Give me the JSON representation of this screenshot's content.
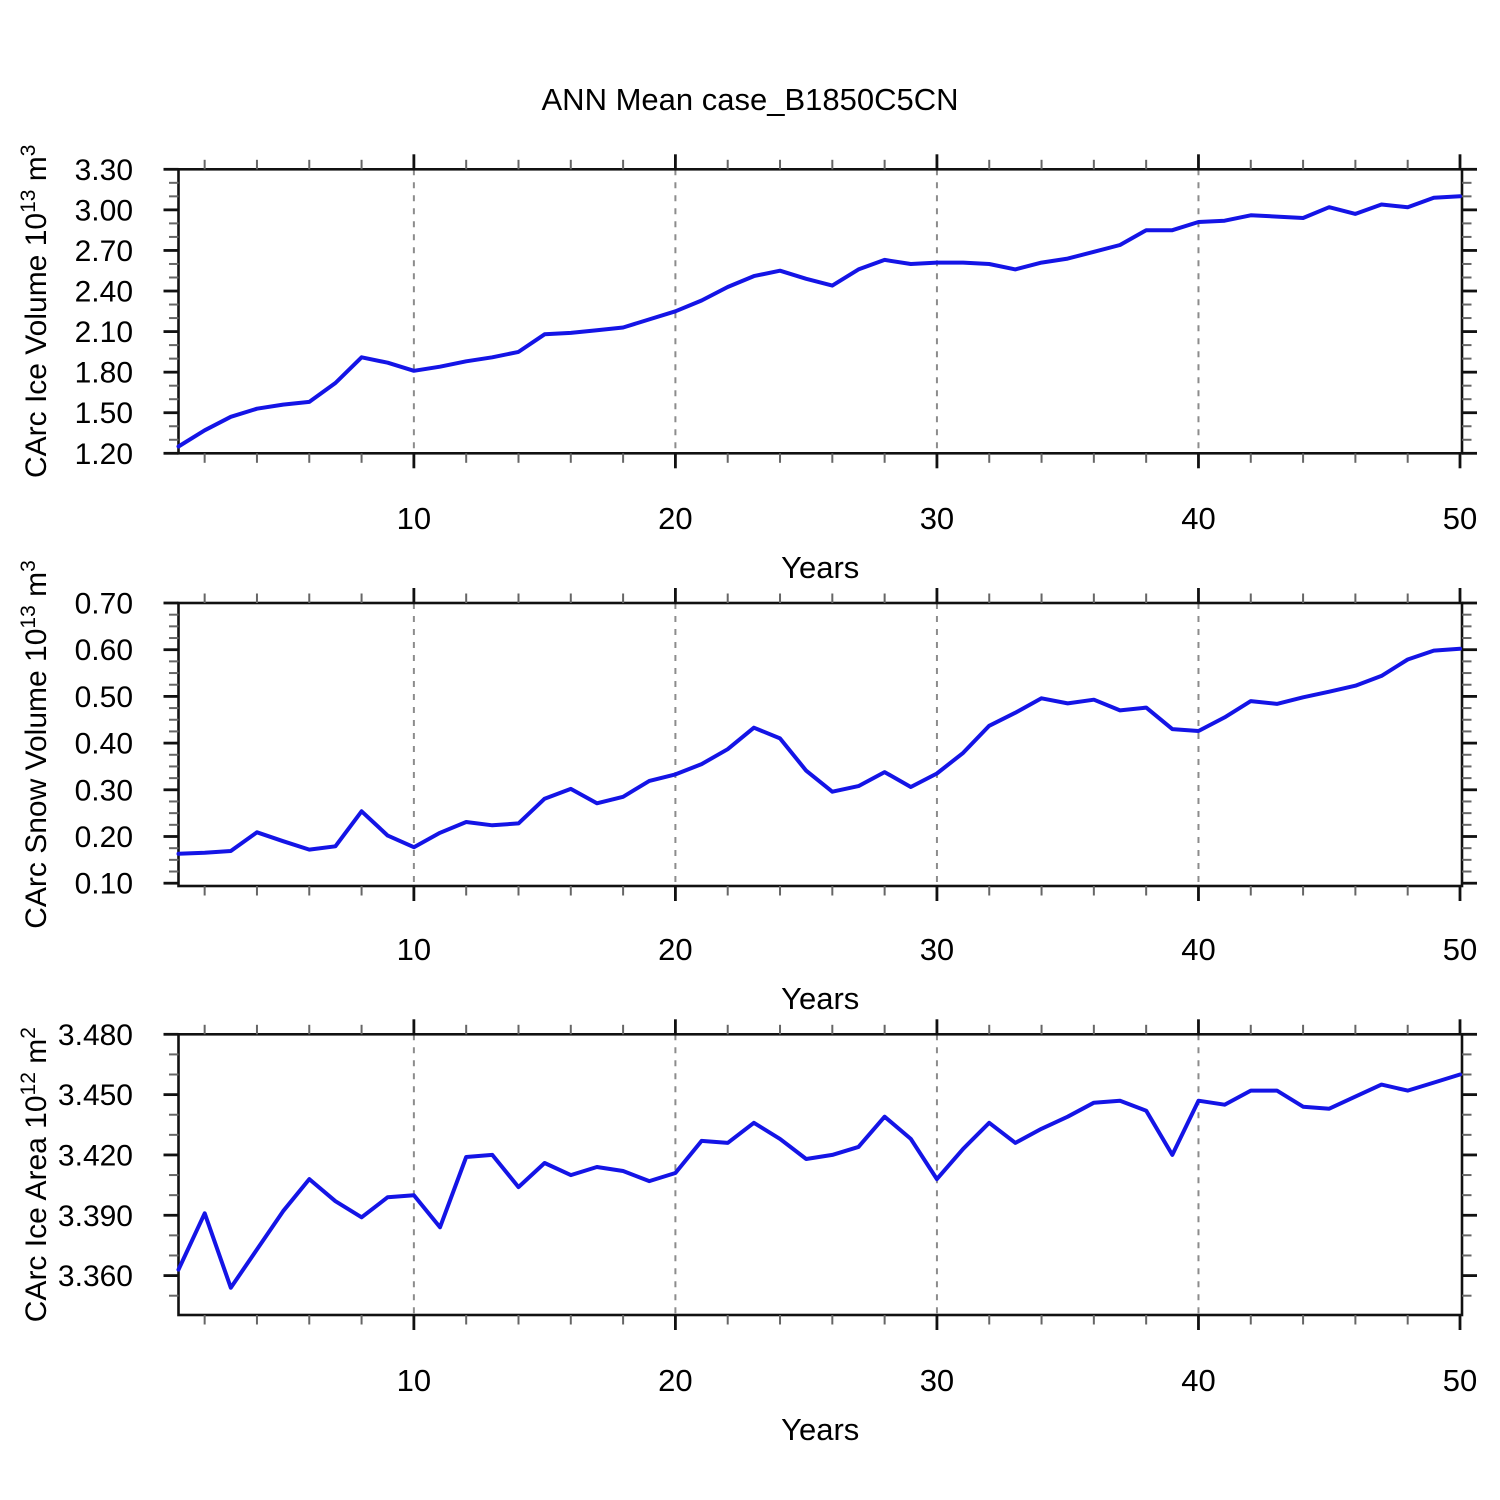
{
  "title": "ANN Mean case_B1850C5CN",
  "colors": {
    "line": "#1414e6",
    "grid": "#8c8c8c",
    "axis": "#111111",
    "minor_tick": "#666666"
  },
  "chart_data": [
    {
      "type": "line",
      "panel": "ice-volume",
      "ylabel_plain": "CArc Ice Volume 10^13 m^3",
      "ylabel_parts": [
        {
          "t": "CArc Ice Volume 10"
        },
        {
          "t": "13",
          "sup": true
        },
        {
          "t": " m"
        },
        {
          "t": "3",
          "sup": true
        }
      ],
      "xlabel": "Years",
      "x": {
        "start": 1,
        "end": 50,
        "step": 1
      },
      "x_major_ticks": [
        10,
        20,
        30,
        40,
        50
      ],
      "x_minor_step": 2,
      "grid_years": [
        10,
        20,
        30,
        40
      ],
      "ylim": [
        1.2,
        3.3
      ],
      "y_major_values": [
        3.3,
        3.0,
        2.7,
        2.4,
        2.1,
        1.8,
        1.5,
        1.2
      ],
      "y_major_labels": [
        "3.30",
        "3.00",
        "2.70",
        "2.40",
        "2.10",
        "1.80",
        "1.50",
        "1.20"
      ],
      "y_minor_step": 0.1,
      "legend": "none",
      "grid": "vertical-dashed",
      "values": [
        1.25,
        1.37,
        1.47,
        1.53,
        1.56,
        1.58,
        1.72,
        1.91,
        1.87,
        1.81,
        1.84,
        1.88,
        1.91,
        1.95,
        2.08,
        2.09,
        2.11,
        2.13,
        2.19,
        2.25,
        2.33,
        2.43,
        2.51,
        2.55,
        2.49,
        2.44,
        2.56,
        2.63,
        2.6,
        2.61,
        2.61,
        2.6,
        2.56,
        2.61,
        2.64,
        2.69,
        2.74,
        2.85,
        2.85,
        2.91,
        2.92,
        2.96,
        2.95,
        2.94,
        3.02,
        2.97,
        3.04,
        3.02,
        3.09,
        3.1
      ]
    },
    {
      "type": "line",
      "panel": "snow-volume",
      "ylabel_plain": "CArc Snow Volume 10^13 m^3",
      "ylabel_parts": [
        {
          "t": "CArc Snow Volume 10"
        },
        {
          "t": "13",
          "sup": true
        },
        {
          "t": " m"
        },
        {
          "t": "3",
          "sup": true
        }
      ],
      "xlabel": "Years",
      "x": {
        "start": 1,
        "end": 50,
        "step": 1
      },
      "x_major_ticks": [
        10,
        20,
        30,
        40,
        50
      ],
      "x_minor_step": 2,
      "grid_years": [
        10,
        20,
        30,
        40
      ],
      "ylim": [
        0.094,
        0.7
      ],
      "y_major_values": [
        0.7,
        0.6,
        0.5,
        0.4,
        0.3,
        0.2,
        0.1
      ],
      "y_major_labels": [
        "0.70",
        "0.60",
        "0.50",
        "0.40",
        "0.30",
        "0.20",
        "0.10"
      ],
      "y_minor_step": 0.025,
      "legend": "none",
      "grid": "vertical-dashed",
      "values": [
        0.163,
        0.165,
        0.169,
        0.209,
        0.19,
        0.172,
        0.179,
        0.254,
        0.202,
        0.177,
        0.208,
        0.231,
        0.224,
        0.228,
        0.281,
        0.302,
        0.271,
        0.285,
        0.319,
        0.333,
        0.355,
        0.387,
        0.433,
        0.41,
        0.341,
        0.296,
        0.308,
        0.338,
        0.306,
        0.335,
        0.379,
        0.437,
        0.465,
        0.496,
        0.485,
        0.493,
        0.47,
        0.476,
        0.43,
        0.426,
        0.455,
        0.49,
        0.484,
        0.498,
        0.51,
        0.523,
        0.544,
        0.579,
        0.598,
        0.602
      ]
    },
    {
      "type": "line",
      "panel": "ice-area",
      "ylabel_plain": "CArc Ice Area 10^12 m^2",
      "ylabel_parts": [
        {
          "t": "CArc Ice Area 10"
        },
        {
          "t": "12",
          "sup": true
        },
        {
          "t": " m"
        },
        {
          "t": "2",
          "sup": true
        }
      ],
      "xlabel": "Years",
      "x": {
        "start": 1,
        "end": 50,
        "step": 1
      },
      "x_major_ticks": [
        10,
        20,
        30,
        40,
        50
      ],
      "x_minor_step": 2,
      "grid_years": [
        10,
        20,
        30,
        40
      ],
      "ylim": [
        3.3404,
        3.48
      ],
      "y_major_values": [
        3.48,
        3.45,
        3.42,
        3.39,
        3.36
      ],
      "y_major_labels": [
        "3.480",
        "3.450",
        "3.420",
        "3.390",
        "3.360"
      ],
      "y_minor_step": 0.01,
      "legend": "none",
      "grid": "vertical-dashed",
      "values": [
        3.363,
        3.391,
        3.354,
        3.373,
        3.392,
        3.408,
        3.397,
        3.389,
        3.399,
        3.4,
        3.384,
        3.419,
        3.42,
        3.404,
        3.416,
        3.41,
        3.414,
        3.412,
        3.407,
        3.411,
        3.427,
        3.426,
        3.436,
        3.428,
        3.418,
        3.42,
        3.424,
        3.439,
        3.428,
        3.408,
        3.423,
        3.436,
        3.426,
        3.433,
        3.439,
        3.446,
        3.447,
        3.442,
        3.42,
        3.447,
        3.445,
        3.452,
        3.452,
        3.444,
        3.443,
        3.449,
        3.455,
        3.452,
        3.456,
        3.46
      ]
    }
  ]
}
